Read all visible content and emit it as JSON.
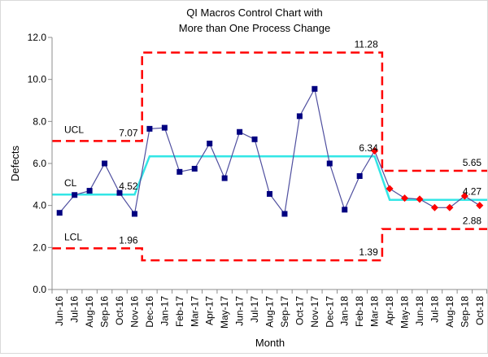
{
  "chart_data": {
    "type": "line",
    "title": [
      "QI Macros Control Chart with",
      "More than One Process Change"
    ],
    "xlabel": "Month",
    "ylabel": "Defects",
    "ylim": [
      0,
      12
    ],
    "yticks": [
      "0.0",
      "2.0",
      "4.0",
      "6.0",
      "8.0",
      "10.0",
      "12.0"
    ],
    "grid": false,
    "categories": [
      "Jun-16",
      "Jul-16",
      "Aug-16",
      "Sep-16",
      "Oct-16",
      "Nov-16",
      "Dec-16",
      "Jan-17",
      "Feb-17",
      "Mar-17",
      "Apr-17",
      "May-17",
      "Jun-17",
      "Jul-17",
      "Aug-17",
      "Sep-17",
      "Oct-17",
      "Nov-17",
      "Dec-17",
      "Jan-18",
      "Feb-18",
      "Mar-18",
      "Apr-18",
      "May-18",
      "Jun-18",
      "Jul-18",
      "Aug-18",
      "Sep-18",
      "Oct-18"
    ],
    "values": [
      3.65,
      4.5,
      4.7,
      6.0,
      4.6,
      3.6,
      7.65,
      7.7,
      5.6,
      5.75,
      6.95,
      5.3,
      7.5,
      7.15,
      4.55,
      3.6,
      8.25,
      9.55,
      6.0,
      3.8,
      5.4,
      6.6,
      4.8,
      4.35,
      4.3,
      3.9,
      3.9,
      4.45,
      4.0
    ],
    "out_of_control_from_index": 21,
    "phases": [
      {
        "start": 0,
        "end": 5,
        "cl": 4.52,
        "ucl": 7.07,
        "lcl": 1.96
      },
      {
        "start": 6,
        "end": 21,
        "cl": 6.34,
        "ucl": 11.28,
        "lcl": 1.39
      },
      {
        "start": 22,
        "end": 28,
        "cl": 4.27,
        "ucl": 5.65,
        "lcl": 2.88
      }
    ],
    "value_labels": [
      {
        "text": "7.07",
        "cat": 4.9,
        "y": 7.07
      },
      {
        "text": "4.52",
        "cat": 4.9,
        "y": 4.52
      },
      {
        "text": "1.96",
        "cat": 4.9,
        "y": 1.96
      },
      {
        "text": "11.28",
        "cat": 20.9,
        "y": 11.28
      },
      {
        "text": "6.34",
        "cat": 20.9,
        "y": 6.34
      },
      {
        "text": "1.39",
        "cat": 20.9,
        "y": 1.39
      },
      {
        "text": "5.65",
        "cat": 27.8,
        "y": 5.65
      },
      {
        "text": "4.27",
        "cat": 27.8,
        "y": 4.27
      },
      {
        "text": "2.88",
        "cat": 27.8,
        "y": 2.88
      }
    ],
    "line_labels": [
      {
        "text": "UCL",
        "y": 7.07
      },
      {
        "text": "CL",
        "y": 4.52
      },
      {
        "text": "LCL",
        "y": 1.96
      }
    ],
    "colors": {
      "data_line": "#4f4f9f",
      "marker": "#000080",
      "out_of_control_marker": "#ff0000",
      "center_line": "#33e6e6",
      "control_limit": "#ff0000",
      "axis": "#8c8c8c"
    }
  }
}
